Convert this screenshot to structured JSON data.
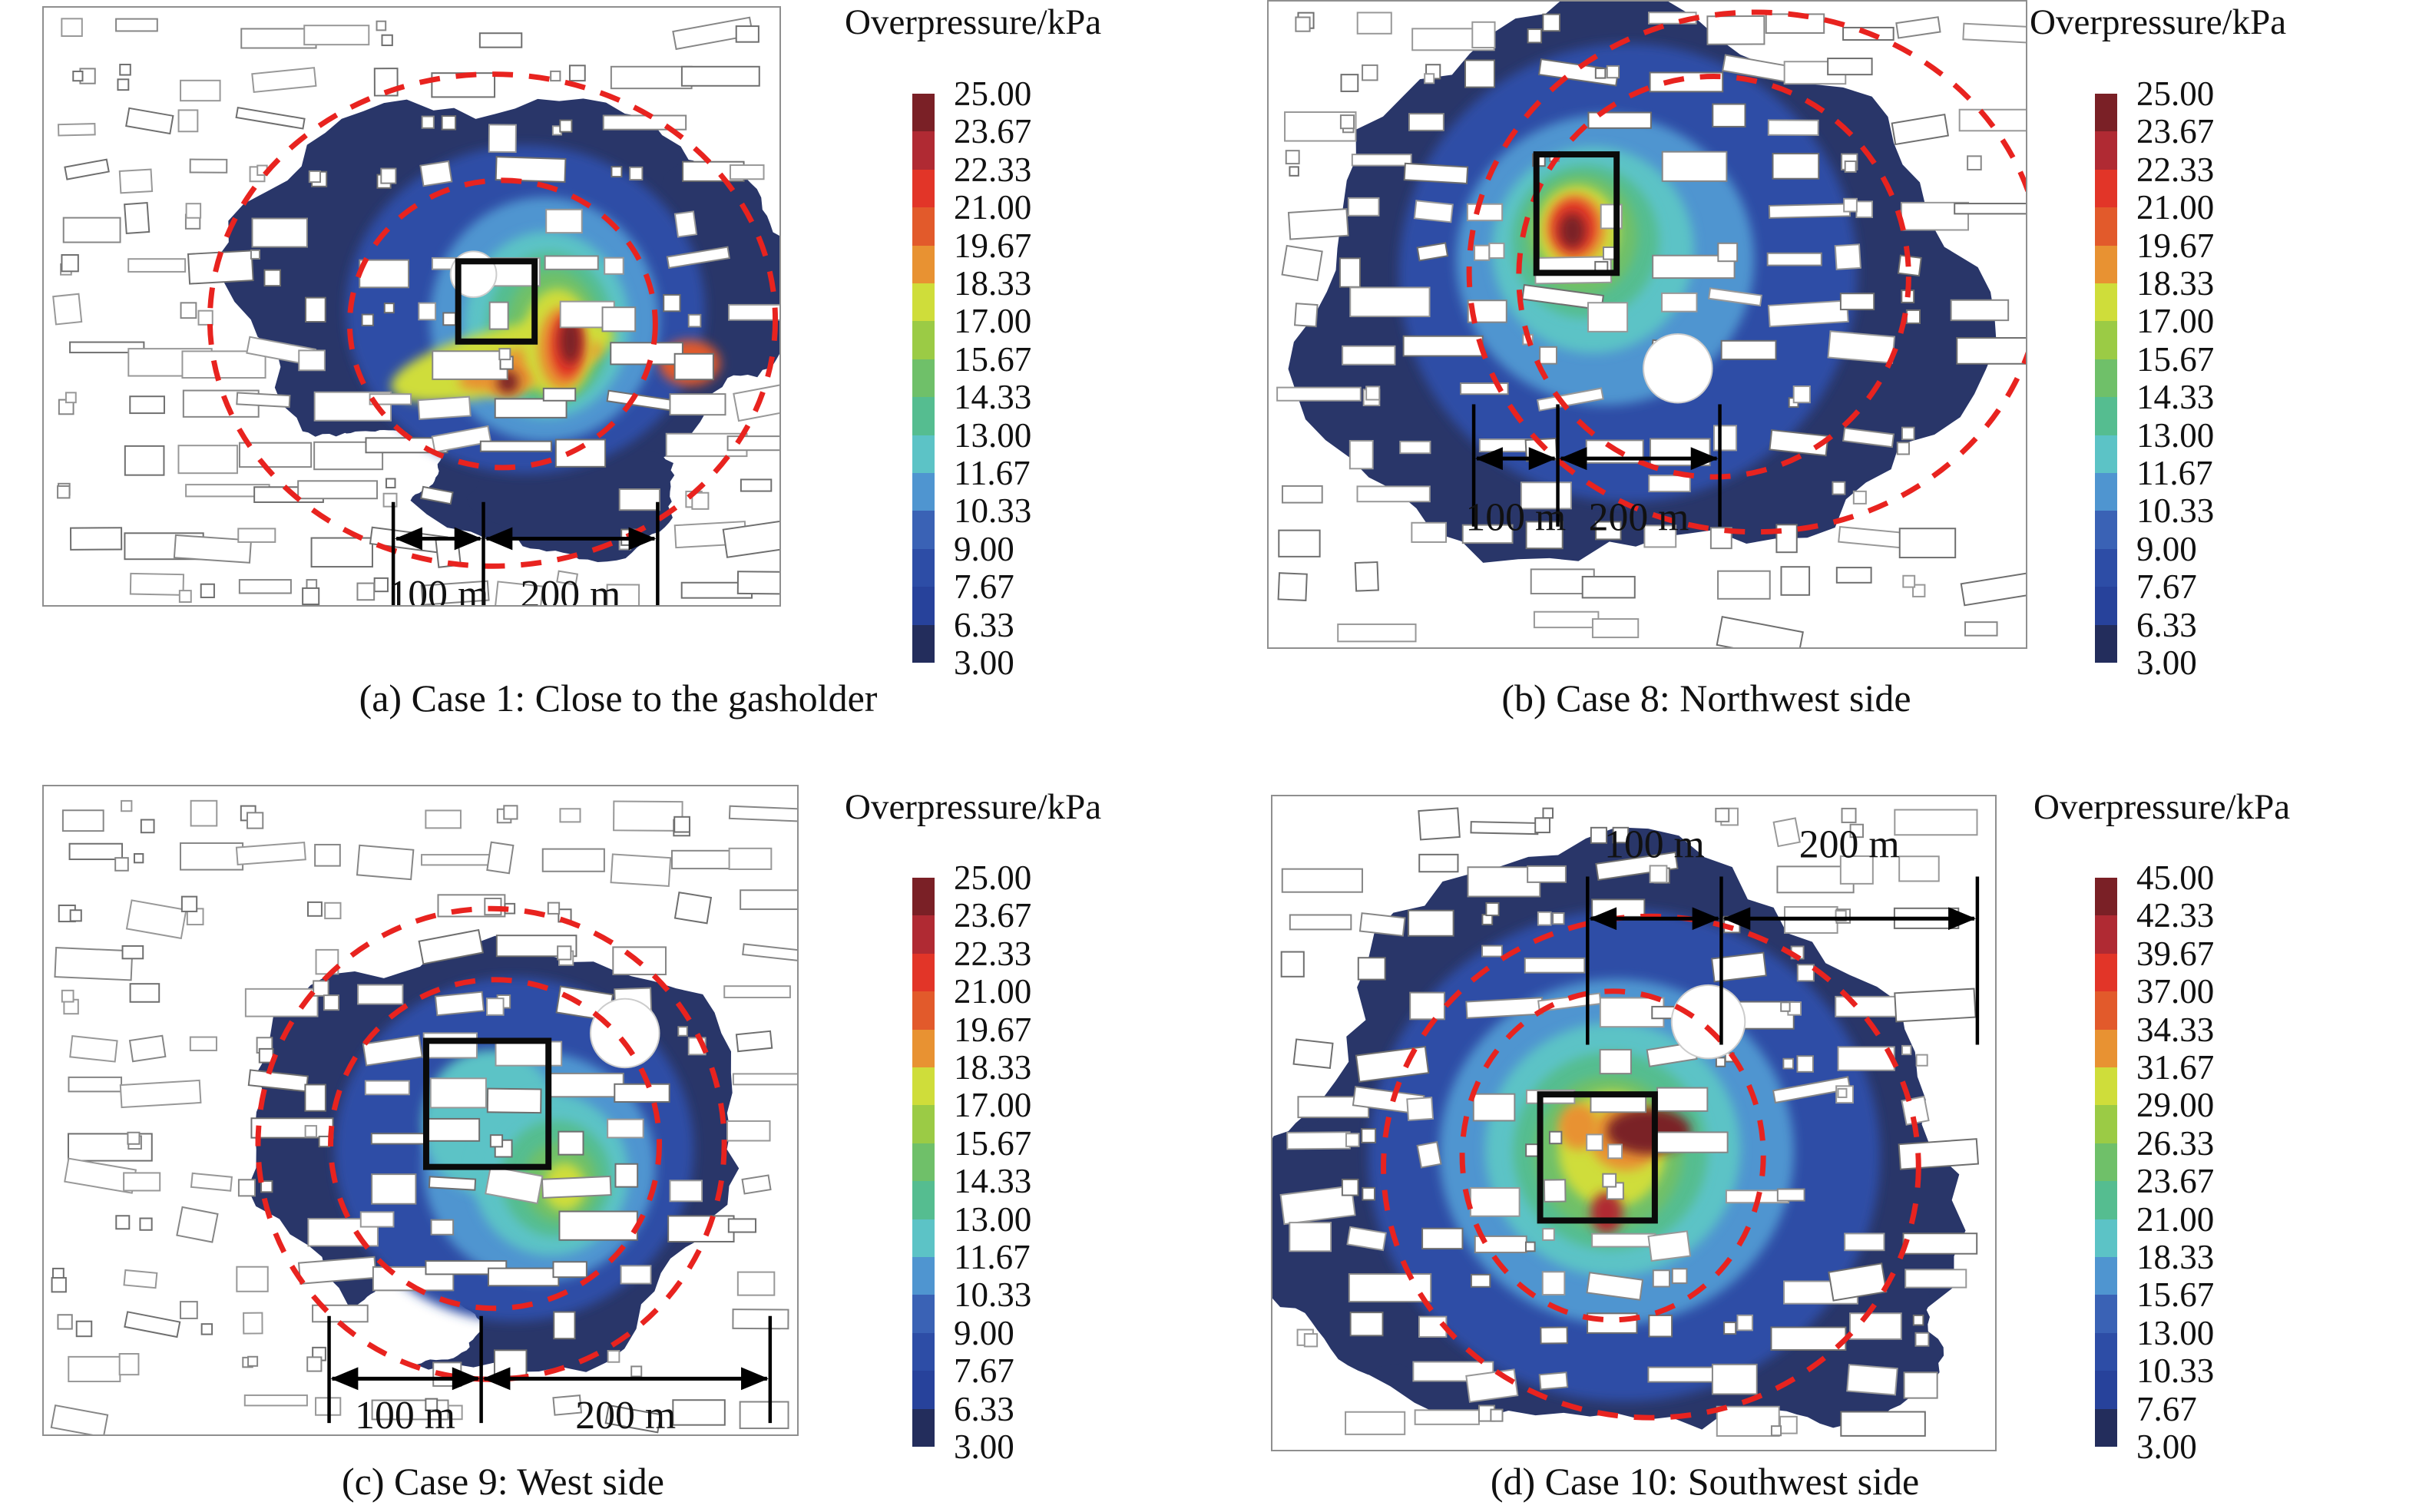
{
  "figure": {
    "description": "Four-panel blast overpressure contour maps over an urban building layout",
    "scale_labels": {
      "d100": "100 m",
      "d200": "200 m"
    },
    "colors": {
      "palette_top_to_bottom": [
        "#7a2026",
        "#b02a33",
        "#e23528",
        "#e25a2b",
        "#e89232",
        "#cfdd3a",
        "#9bcb45",
        "#6fc069",
        "#55bd90",
        "#5cc3c6",
        "#4f95d0",
        "#3a62b5",
        "#2d4da6",
        "#27429b",
        "#232d5c"
      ],
      "dashed_circle": "#e8231f",
      "blob_base": "#293669",
      "building_stroke": "#8a8a8a",
      "text": "#111111",
      "background": "#ffffff"
    },
    "panels": [
      {
        "id": "a",
        "legend_title": "Overpressure/kPa",
        "caption": "(a) Case 1: Close to the gasholder",
        "colorbar_ticks": [
          "25.00",
          "23.67",
          "22.33",
          "21.00",
          "19.67",
          "18.33",
          "17.00",
          "15.67",
          "14.33",
          "13.00",
          "11.67",
          "10.33",
          "9.00",
          "7.67",
          "6.33",
          "3.00"
        ]
      },
      {
        "id": "b",
        "legend_title": "Overpressure/kPa",
        "caption": "(b) Case 8: Northwest side",
        "colorbar_ticks": [
          "25.00",
          "23.67",
          "22.33",
          "21.00",
          "19.67",
          "18.33",
          "17.00",
          "15.67",
          "14.33",
          "13.00",
          "11.67",
          "10.33",
          "9.00",
          "7.67",
          "6.33",
          "3.00"
        ]
      },
      {
        "id": "c",
        "legend_title": "Overpressure/kPa",
        "caption": "(c) Case 9: West side",
        "colorbar_ticks": [
          "25.00",
          "23.67",
          "22.33",
          "21.00",
          "19.67",
          "18.33",
          "17.00",
          "15.67",
          "14.33",
          "13.00",
          "11.67",
          "10.33",
          "9.00",
          "7.67",
          "6.33",
          "3.00"
        ]
      },
      {
        "id": "d",
        "legend_title": "Overpressure/kPa",
        "caption": "(d) Case 10: Southwest side",
        "colorbar_ticks": [
          "45.00",
          "42.33",
          "39.67",
          "37.00",
          "34.33",
          "31.67",
          "29.00",
          "26.33",
          "23.67",
          "21.00",
          "18.33",
          "15.67",
          "13.00",
          "10.33",
          "7.67",
          "3.00"
        ]
      }
    ]
  },
  "chart_data": [
    {
      "type": "heatmap",
      "subtype": "blast overpressure contour map",
      "panel": "a",
      "title": "(a) Case 1: Close to the gasholder",
      "case": "Case 1",
      "ignition_location": "Close to the gasholder",
      "legend_title": "Overpressure/kPa",
      "units": "kPa",
      "contour_levels_kpa": [
        3.0,
        6.33,
        7.67,
        9.0,
        10.33,
        11.67,
        13.0,
        14.33,
        15.67,
        17.0,
        18.33,
        19.67,
        21.0,
        22.33,
        23.67,
        25.0
      ],
      "colorbar_range_kpa": [
        3.0,
        25.0
      ],
      "dashed_radius_circles_m": [
        100,
        200
      ],
      "distance_annotations": [
        "100 m",
        "200 m"
      ],
      "scale_bar_position": "bottom of map",
      "visible_peak": "red/dark-red hotspot (>= 23 kPa) just south-east of the gasholder square"
    },
    {
      "type": "heatmap",
      "subtype": "blast overpressure contour map",
      "panel": "b",
      "title": "(b) Case 8: Northwest side",
      "case": "Case 8",
      "ignition_location": "Northwest side",
      "legend_title": "Overpressure/kPa",
      "units": "kPa",
      "contour_levels_kpa": [
        3.0,
        6.33,
        7.67,
        9.0,
        10.33,
        11.67,
        13.0,
        14.33,
        15.67,
        17.0,
        18.33,
        19.67,
        21.0,
        22.33,
        23.67,
        25.0
      ],
      "colorbar_range_kpa": [
        3.0,
        25.0
      ],
      "dashed_radius_circles_m": [
        100,
        200
      ],
      "distance_annotations": [
        "100 m",
        "200 m"
      ],
      "scale_bar_position": "bottom of map",
      "visible_peak": "red hotspot (>= 23 kPa) inside the black square, left of its centre"
    },
    {
      "type": "heatmap",
      "subtype": "blast overpressure contour map",
      "panel": "c",
      "title": "(c) Case 9: West side",
      "case": "Case 9",
      "ignition_location": "West side",
      "legend_title": "Overpressure/kPa",
      "units": "kPa",
      "contour_levels_kpa": [
        3.0,
        6.33,
        7.67,
        9.0,
        10.33,
        11.67,
        13.0,
        14.33,
        15.67,
        17.0,
        18.33,
        19.67,
        21.0,
        22.33,
        23.67,
        25.0
      ],
      "colorbar_range_kpa": [
        3.0,
        25.0
      ],
      "dashed_radius_circles_m": [
        100,
        200
      ],
      "distance_annotations": [
        "100 m",
        "200 m"
      ],
      "scale_bar_position": "bottom of map",
      "visible_peak": "green/teal maximum (~15-17 kPa) south-east of the black square; no red zone"
    },
    {
      "type": "heatmap",
      "subtype": "blast overpressure contour map",
      "panel": "d",
      "title": "(d) Case 10: Southwest side",
      "case": "Case 10",
      "ignition_location": "Southwest side",
      "legend_title": "Overpressure/kPa",
      "units": "kPa",
      "contour_levels_kpa": [
        3.0,
        7.67,
        10.33,
        13.0,
        15.67,
        18.33,
        21.0,
        23.67,
        26.33,
        29.0,
        31.67,
        34.33,
        37.0,
        39.67,
        42.33,
        45.0
      ],
      "colorbar_range_kpa": [
        3.0,
        45.0
      ],
      "dashed_radius_circles_m": [
        100,
        200
      ],
      "distance_annotations": [
        "100 m",
        "200 m"
      ],
      "scale_bar_position": "top of map",
      "visible_peak": "dark-red hotspot (>= 42 kPa) at the upper-right of the black square"
    }
  ]
}
